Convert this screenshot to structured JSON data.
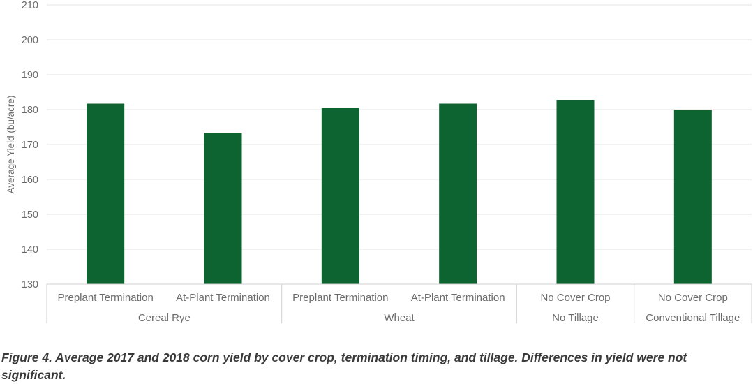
{
  "chart_data": {
    "type": "bar",
    "ylabel": "Average Yield (bu/acre)",
    "ylim": [
      130,
      210
    ],
    "yticks": [
      130,
      140,
      150,
      160,
      170,
      180,
      190,
      200,
      210
    ],
    "grid": true,
    "bar_color": "#0e6430",
    "grid_color": "#e3e3e3",
    "axis_color": "#d0d0d0",
    "categories": [
      "Preplant Termination",
      "At-Plant Termination",
      "Preplant Termination",
      "At-Plant Termination",
      "No Cover Crop",
      "No Cover Crop"
    ],
    "groups": [
      {
        "label": "Cereal Rye",
        "span": 2
      },
      {
        "label": "Wheat",
        "span": 2
      },
      {
        "label": "No Tillage",
        "span": 1
      },
      {
        "label": "Conventional Tillage",
        "span": 1
      }
    ],
    "values": [
      181.7,
      173.4,
      180.5,
      181.7,
      182.8,
      180.0
    ]
  },
  "caption": "Figure 4. Average 2017 and 2018 corn yield by cover crop, termination timing, and tillage. Differences in yield were not significant."
}
